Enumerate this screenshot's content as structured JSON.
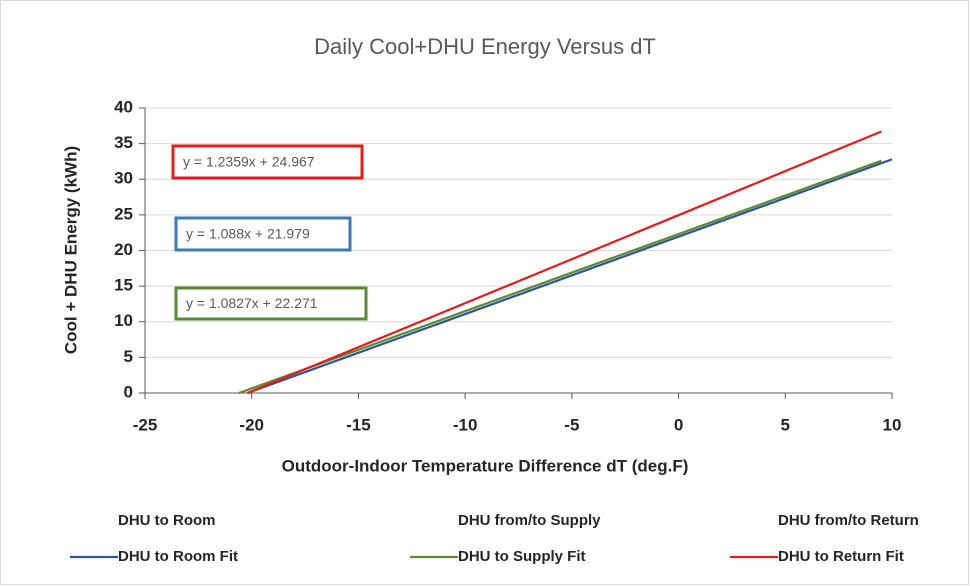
{
  "chart_data": {
    "type": "line",
    "title": "Daily Cool+DHU  Energy Versus dT",
    "x_label": "Outdoor-Indoor Temperature Difference dT (deg.F)",
    "y_label": "Cool + DHU Energy (kWh)",
    "xlim": [
      -25,
      10
    ],
    "xticks": [
      -25,
      -20,
      -15,
      -10,
      -5,
      0,
      5,
      10
    ],
    "ylim": [
      0,
      40
    ],
    "yticks": [
      0,
      5,
      10,
      15,
      20,
      25,
      30,
      35,
      40
    ],
    "grid": true,
    "legend": "bottom",
    "series": [
      {
        "name": "DHU to Room",
        "x": [],
        "values": []
      },
      {
        "name": "DHU from/to Supply",
        "x": [],
        "values": []
      },
      {
        "name": "DHU from/to Return",
        "x": [],
        "values": []
      },
      {
        "name": "DHU to Room Fit",
        "color": "#2e5597",
        "x": [
          -20.2,
          10
        ],
        "values": [
          0,
          32.8
        ]
      },
      {
        "name": "DHU to Supply Fit",
        "color": "#5a8a32",
        "x": [
          -20.6,
          9.5
        ],
        "values": [
          0,
          32.6
        ]
      },
      {
        "name": "DHU to Return Fit",
        "color": "#e41c1c",
        "x": [
          -20.2,
          9.5
        ],
        "values": [
          0,
          36.7
        ]
      }
    ],
    "annotations": [
      {
        "text": "y = 1.2359x  + 24.967",
        "color": "#e41c1c"
      },
      {
        "text": "y = 1.088x  + 21.979",
        "color": "#3a7ab8"
      },
      {
        "text": "y = 1.0827x  + 22.271",
        "color": "#5a8a32"
      }
    ]
  }
}
